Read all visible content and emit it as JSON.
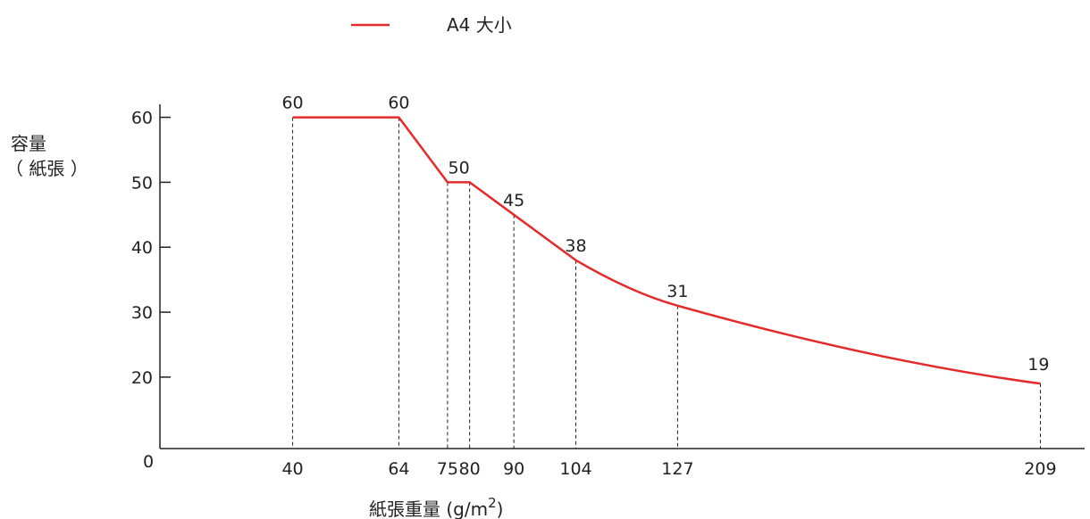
{
  "chart_data": {
    "type": "line",
    "title": "",
    "ylabel_line1": "容量",
    "ylabel_line2": "（ 紙張 ）",
    "xlabel_main": "紙張重量 (g/m",
    "xlabel_sup": "2",
    "xlabel_close": ")",
    "legend": [
      {
        "label": "A4 大小",
        "color": "#e32b2b"
      }
    ],
    "legend_placement": "top-center",
    "series": [
      {
        "name": "A4 大小",
        "color": "#e32b2b",
        "points": [
          {
            "x": 40,
            "y": 60,
            "label": "60"
          },
          {
            "x": 64,
            "y": 60,
            "label": "60"
          },
          {
            "x": 75,
            "y": 50,
            "label": ""
          },
          {
            "x": 80,
            "y": 50,
            "label": "50"
          },
          {
            "x": 90,
            "y": 45,
            "label": "45"
          },
          {
            "x": 104,
            "y": 38,
            "label": "38"
          },
          {
            "x": 127,
            "y": 31,
            "label": "31"
          },
          {
            "x": 209,
            "y": 19,
            "label": "19"
          }
        ]
      }
    ],
    "x_ticks": [
      "40",
      "64",
      "75",
      "80",
      "90",
      "104",
      "127",
      "209"
    ],
    "y_ticks": [
      {
        "value": 20,
        "label": "20"
      },
      {
        "value": 30,
        "label": "30"
      },
      {
        "value": 40,
        "label": "40"
      },
      {
        "value": 50,
        "label": "50"
      },
      {
        "value": 60,
        "label": "60"
      }
    ],
    "origin_label": "0",
    "ylim": [
      9,
      62
    ],
    "grid": false,
    "drop_lines": "dashed"
  }
}
